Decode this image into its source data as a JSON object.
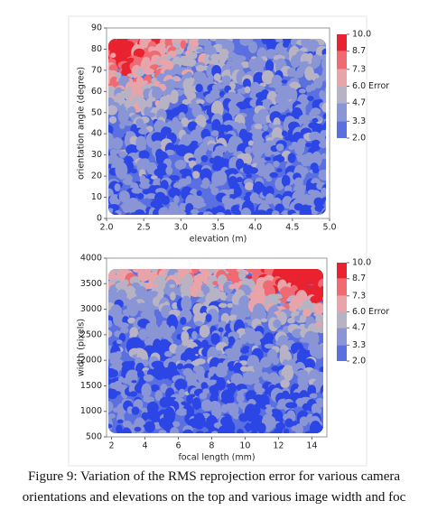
{
  "chart_data": [
    {
      "type": "contour",
      "x_label": "elevation (m)",
      "y_label": "orientation angle (degree)",
      "xlim": [
        2,
        5
      ],
      "ylim": [
        0,
        90
      ],
      "xticks": [
        {
          "value": 2,
          "label": "2.0"
        },
        {
          "value": 2.5,
          "label": "2.5"
        },
        {
          "value": 3,
          "label": "3.0"
        },
        {
          "value": 3.5,
          "label": "3.5"
        },
        {
          "value": 4,
          "label": "4.0"
        },
        {
          "value": 4.5,
          "label": "4.5"
        },
        {
          "value": 5,
          "label": "5.0"
        }
      ],
      "yticks": [
        0,
        10,
        20,
        30,
        40,
        50,
        60,
        70,
        80,
        90
      ],
      "colorbar": {
        "title": "Error",
        "ticks": [
          {
            "value": 10,
            "label": "10.0"
          },
          {
            "value": 8.7,
            "label": "8.7"
          },
          {
            "value": 7.3,
            "label": "7.3"
          },
          {
            "value": 6,
            "label": "6.0"
          },
          {
            "value": 4.7,
            "label": "4.7"
          },
          {
            "value": 3.3,
            "label": "3.3"
          },
          {
            "value": 2,
            "label": "2.0"
          }
        ],
        "colors": [
          "#e8232f",
          "#ef6a72",
          "#e8a4a8",
          "#b7b3c4",
          "#8a95d6",
          "#5a6fe0",
          "#2c46e6"
        ]
      }
    },
    {
      "type": "contour",
      "x_label": "focal length (mm)",
      "y_label": "width (pixels)",
      "xlim": [
        1.7,
        14.9
      ],
      "ylim": [
        500,
        4000
      ],
      "xticks": [
        2,
        4,
        6,
        8,
        10,
        12,
        14
      ],
      "yticks": [
        500,
        1000,
        1500,
        2000,
        2500,
        3000,
        3500,
        4000
      ],
      "colorbar": {
        "title": "Error",
        "ticks": [
          {
            "value": 10,
            "label": "10.0"
          },
          {
            "value": 8.7,
            "label": "8.7"
          },
          {
            "value": 7.3,
            "label": "7.3"
          },
          {
            "value": 6,
            "label": "6.0"
          },
          {
            "value": 4.7,
            "label": "4.7"
          },
          {
            "value": 3.3,
            "label": "3.3"
          },
          {
            "value": 2,
            "label": "2.0"
          }
        ],
        "colors": [
          "#e8232f",
          "#ef6a72",
          "#e8a4a8",
          "#b7b3c4",
          "#8a95d6",
          "#5a6fe0",
          "#2c46e6"
        ]
      }
    }
  ],
  "caption": {
    "lines": [
      "Figure 9: Variation of the RMS reprojection error for various camera",
      "orientations and elevations on the top and various image width and foc"
    ]
  }
}
